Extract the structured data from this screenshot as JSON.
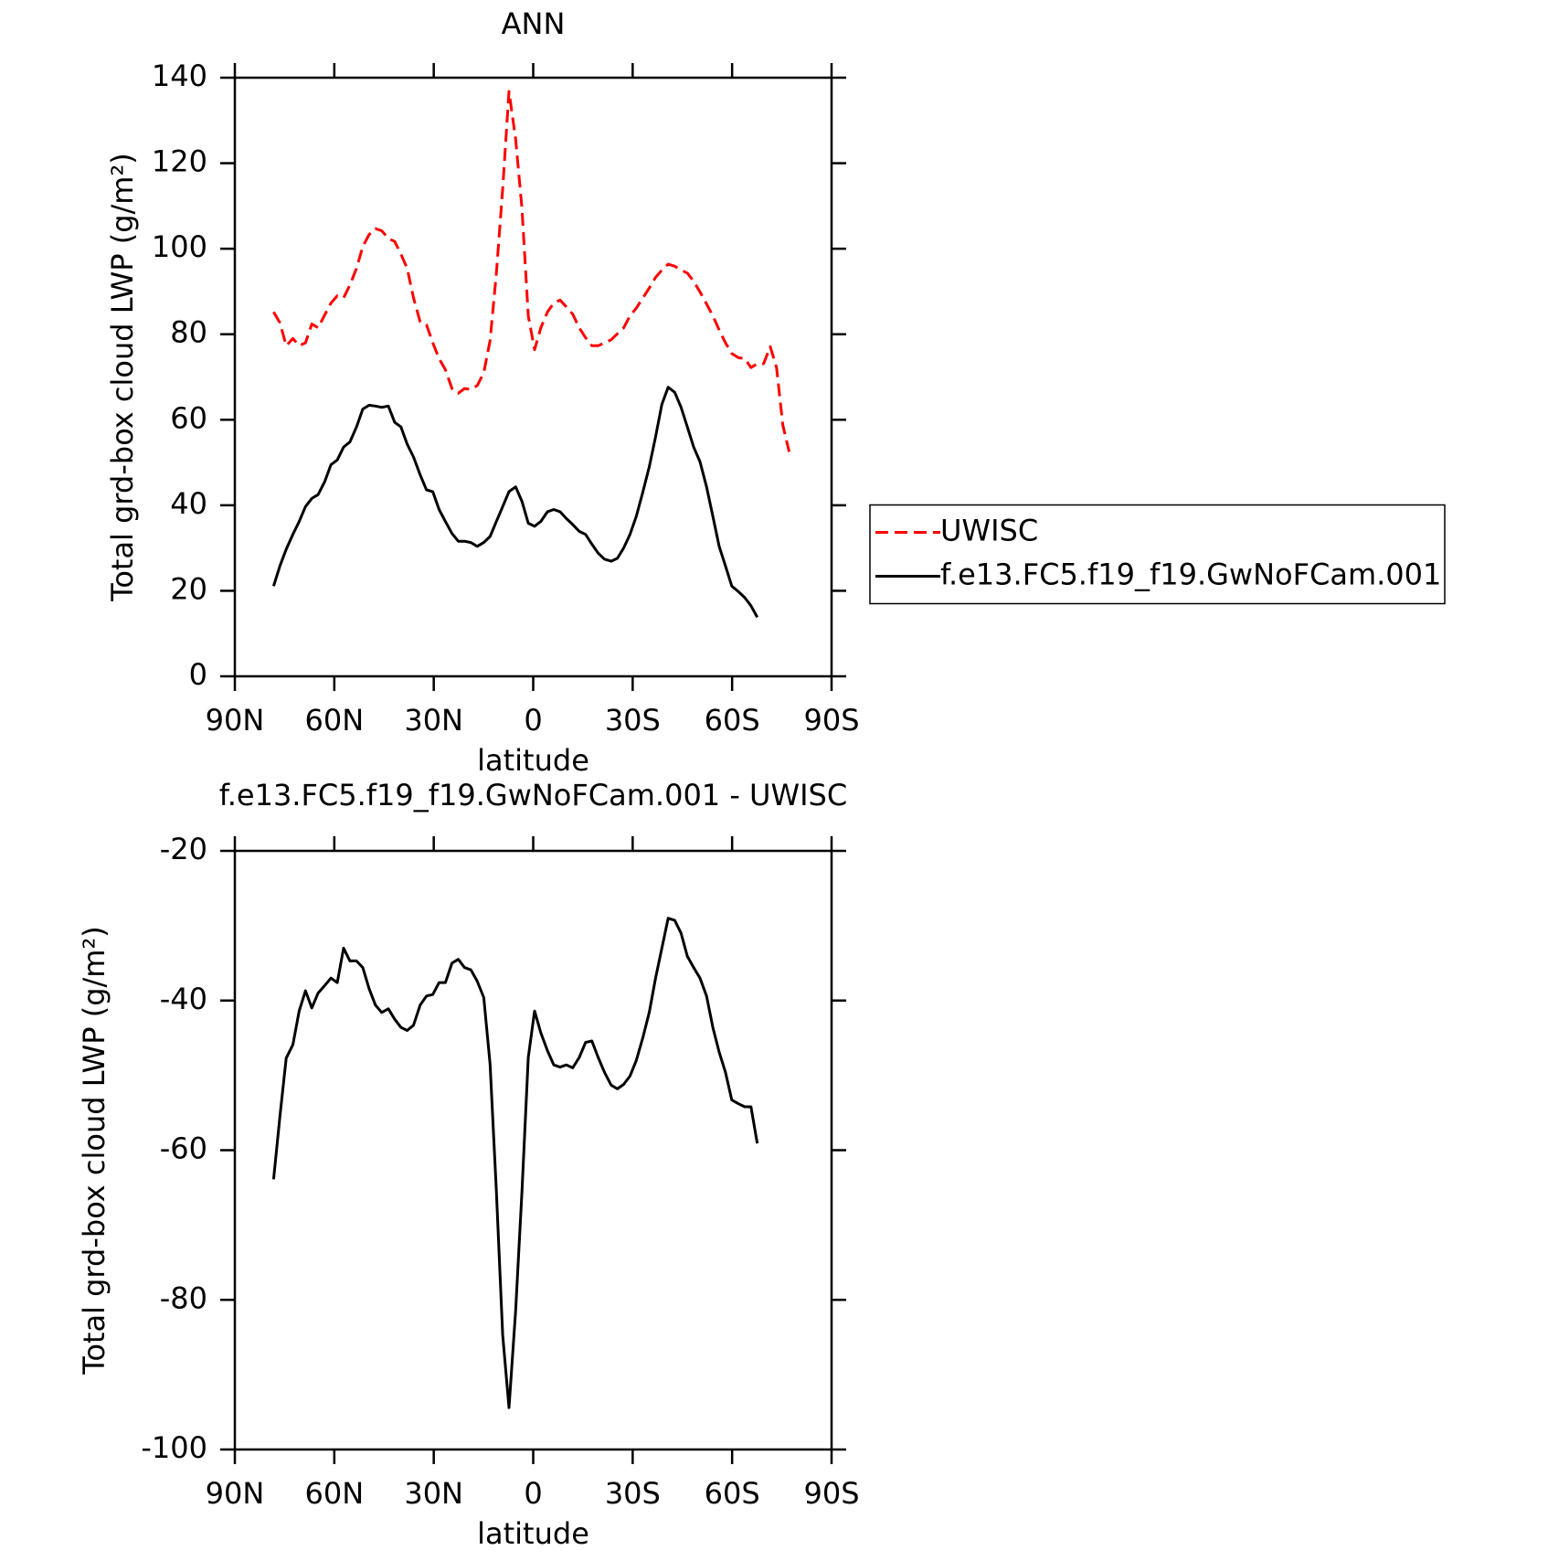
{
  "chart_data": [
    {
      "type": "line",
      "title": "ANN",
      "x_label": "latitude",
      "y_label": "Total grd-box cloud LWP (g/m²)",
      "xlim": [
        90,
        -90
      ],
      "ylim": [
        0,
        140
      ],
      "xticks": [
        {
          "value": 90,
          "label": "90N"
        },
        {
          "value": 60,
          "label": "60N"
        },
        {
          "value": 30,
          "label": "30N"
        },
        0,
        {
          "value": -30,
          "label": "30S"
        },
        {
          "value": -60,
          "label": "60S"
        },
        {
          "value": -90,
          "label": "90S"
        }
      ],
      "yticks": [
        0,
        20,
        40,
        60,
        80,
        100,
        120,
        140
      ],
      "legend_position": "right",
      "x": [
        78.3,
        76.4,
        74.5,
        72.5,
        70.6,
        68.7,
        66.8,
        64.9,
        62.9,
        61.0,
        59.1,
        57.2,
        55.3,
        53.3,
        51.4,
        49.5,
        47.6,
        45.7,
        43.7,
        41.8,
        39.9,
        38.0,
        36.1,
        34.1,
        32.2,
        30.3,
        28.4,
        26.5,
        24.5,
        22.6,
        20.7,
        18.8,
        16.9,
        14.9,
        13.0,
        11.1,
        9.2,
        7.3,
        5.3,
        3.4,
        1.5,
        -0.4,
        -2.3,
        -4.3,
        -6.2,
        -8.1,
        -10.0,
        -11.9,
        -13.9,
        -15.8,
        -17.7,
        -19.6,
        -21.5,
        -23.5,
        -25.4,
        -27.3,
        -29.2,
        -31.1,
        -33.1,
        -35.0,
        -36.9,
        -38.8,
        -40.7,
        -42.7,
        -44.6,
        -46.5,
        -48.4,
        -50.3,
        -52.3,
        -54.2,
        -56.1,
        -58.0,
        -59.9,
        -61.9,
        -63.8,
        -65.7,
        -67.6,
        -69.5,
        -71.5,
        -73.4,
        -75.3,
        -77.2
      ],
      "series": [
        {
          "name": "UWISC",
          "color": "#ff0000",
          "style": "dashed",
          "values": [
            85.2,
            82.7,
            77.3,
            79.0,
            77.3,
            78.0,
            82.4,
            81.5,
            84.5,
            87.3,
            89.0,
            88.5,
            91.5,
            95.4,
            100.5,
            103.3,
            104.7,
            104.2,
            102.4,
            101.7,
            98.7,
            95.4,
            88.5,
            82.9,
            82.2,
            78.0,
            74.3,
            71.7,
            67.3,
            66.2,
            67.3,
            67.1,
            68.0,
            71.0,
            78.5,
            94.3,
            114.0,
            136.8,
            125.6,
            109.4,
            84.3,
            76.4,
            81.5,
            85.2,
            87.3,
            88.0,
            86.4,
            84.7,
            81.5,
            79.2,
            77.3,
            77.3,
            78.0,
            78.7,
            80.1,
            81.5,
            84.3,
            86.1,
            88.5,
            90.8,
            93.3,
            95.0,
            96.4,
            95.9,
            95.0,
            94.3,
            92.4,
            89.9,
            87.1,
            84.3,
            81.0,
            78.0,
            75.5,
            74.5,
            74.3,
            72.2,
            73.1,
            73.1,
            77.1,
            72.2,
            58.7,
            52.5
          ]
        },
        {
          "name": "f.e13.FC5.f19_f19.GwNoFCam.001",
          "color": "#000000",
          "style": "solid",
          "values": [
            21.1,
            25.8,
            29.7,
            33.2,
            36.2,
            39.7,
            41.6,
            42.5,
            45.5,
            49.5,
            50.6,
            53.6,
            54.8,
            58.3,
            62.5,
            63.4,
            63.2,
            62.9,
            63.2,
            59.4,
            58.3,
            54.3,
            51.3,
            47.1,
            43.6,
            43.2,
            39.0,
            36.2,
            33.4,
            31.6,
            31.6,
            31.3,
            30.4,
            31.3,
            32.7,
            36.2,
            39.7,
            43.2,
            44.3,
            40.9,
            35.8,
            35.1,
            36.2,
            38.5,
            39.0,
            38.5,
            36.9,
            35.5,
            33.9,
            33.2,
            30.9,
            28.8,
            27.4,
            26.9,
            27.6,
            30.0,
            33.2,
            37.4,
            43.2,
            49.0,
            56.0,
            63.6,
            67.6,
            66.4,
            62.9,
            58.3,
            53.6,
            50.2,
            44.3,
            37.4,
            30.4,
            25.8,
            21.1,
            19.8,
            18.4,
            16.5,
            13.8,
            null,
            null,
            null,
            null,
            null
          ]
        }
      ]
    },
    {
      "type": "line",
      "title": "f.e13.FC5.f19_f19.GwNoFCam.001 - UWISC",
      "x_label": "latitude",
      "y_label": "Total grd-box cloud LWP (g/m²)",
      "xlim": [
        90,
        -90
      ],
      "ylim": [
        -100,
        -20
      ],
      "xticks": [
        {
          "value": 90,
          "label": "90N"
        },
        {
          "value": 60,
          "label": "60N"
        },
        {
          "value": 30,
          "label": "30N"
        },
        0,
        {
          "value": -30,
          "label": "30S"
        },
        {
          "value": -60,
          "label": "60S"
        },
        {
          "value": -90,
          "label": "90S"
        }
      ],
      "yticks": [
        -20,
        -40,
        -60,
        -80,
        -100
      ],
      "x": [
        78.3,
        76.4,
        74.5,
        72.5,
        70.6,
        68.7,
        66.8,
        64.9,
        62.9,
        61.0,
        59.1,
        57.2,
        55.3,
        53.3,
        51.4,
        49.5,
        47.6,
        45.7,
        43.7,
        41.8,
        39.9,
        38.0,
        36.1,
        34.1,
        32.2,
        30.3,
        28.4,
        26.5,
        24.5,
        22.6,
        20.7,
        18.8,
        16.9,
        14.9,
        13.0,
        11.1,
        9.2,
        7.3,
        5.3,
        3.4,
        1.5,
        -0.4,
        -2.3,
        -4.3,
        -6.2,
        -8.1,
        -10.0,
        -11.9,
        -13.9,
        -15.8,
        -17.7,
        -19.6,
        -21.5,
        -23.5,
        -25.4,
        -27.3,
        -29.2,
        -31.1,
        -33.1,
        -35.0,
        -36.9,
        -38.8,
        -40.7,
        -42.7,
        -44.6,
        -46.5,
        -48.4,
        -50.3,
        -52.3,
        -54.2,
        -56.1,
        -58.0,
        -59.9,
        -61.9,
        -63.8,
        -65.7,
        -67.6
      ],
      "color": "#000000",
      "values": [
        -63.9,
        -55.5,
        -47.7,
        -45.9,
        -41.4,
        -38.7,
        -41.0,
        -39.0,
        -38.0,
        -37.0,
        -37.6,
        -33.0,
        -34.7,
        -34.7,
        -35.6,
        -38.4,
        -40.6,
        -41.6,
        -41.1,
        -42.5,
        -43.6,
        -44.0,
        -43.3,
        -40.6,
        -39.4,
        -39.2,
        -37.6,
        -37.6,
        -35.0,
        -34.5,
        -35.6,
        -35.9,
        -37.4,
        -39.6,
        -48.5,
        -65.5,
        -84.7,
        -94.4,
        -81.4,
        -65.5,
        -47.6,
        -41.4,
        -44.3,
        -46.7,
        -48.6,
        -48.9,
        -48.6,
        -49.0,
        -47.6,
        -45.6,
        -45.4,
        -47.6,
        -49.6,
        -51.3,
        -51.8,
        -51.2,
        -50.1,
        -48.0,
        -44.9,
        -41.6,
        -37.0,
        -33.0,
        -29.0,
        -29.3,
        -31.0,
        -34.1,
        -35.6,
        -37.0,
        -39.4,
        -43.6,
        -46.9,
        -49.6,
        -53.3,
        -53.8,
        -54.2,
        -54.2,
        -59.1
      ]
    }
  ]
}
